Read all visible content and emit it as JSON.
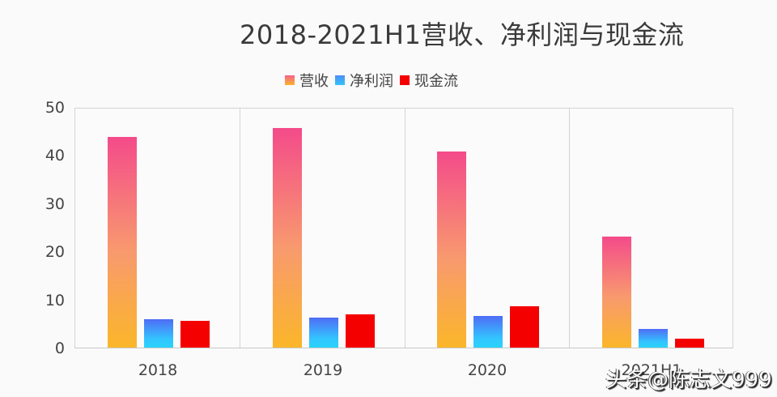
{
  "title": "2018-2021H1营收、净利润与现金流",
  "legend": [
    {
      "label": "营收",
      "color": "#f7866f"
    },
    {
      "label": "净利润",
      "color": "#3aa8ff"
    },
    {
      "label": "现金流",
      "color": "#f40000"
    }
  ],
  "y_ticks": [
    "0",
    "10",
    "20",
    "30",
    "40",
    "50"
  ],
  "x_ticks": [
    "2018",
    "2019",
    "2020",
    "2021H1"
  ],
  "watermark": "头条@陈志文999",
  "chart_data": {
    "type": "bar",
    "title": "2018-2021H1营收、净利润与现金流",
    "xlabel": "",
    "ylabel": "",
    "ylim": [
      0,
      50
    ],
    "grid": false,
    "legend_position": "top",
    "categories": [
      "2018",
      "2019",
      "2020",
      "2021H1"
    ],
    "series": [
      {
        "name": "营收",
        "values": [
          43.9,
          45.8,
          40.9,
          23.2
        ]
      },
      {
        "name": "净利润",
        "values": [
          5.9,
          6.2,
          6.6,
          3.9
        ]
      },
      {
        "name": "现金流",
        "values": [
          5.6,
          6.9,
          8.6,
          1.9
        ]
      }
    ]
  }
}
